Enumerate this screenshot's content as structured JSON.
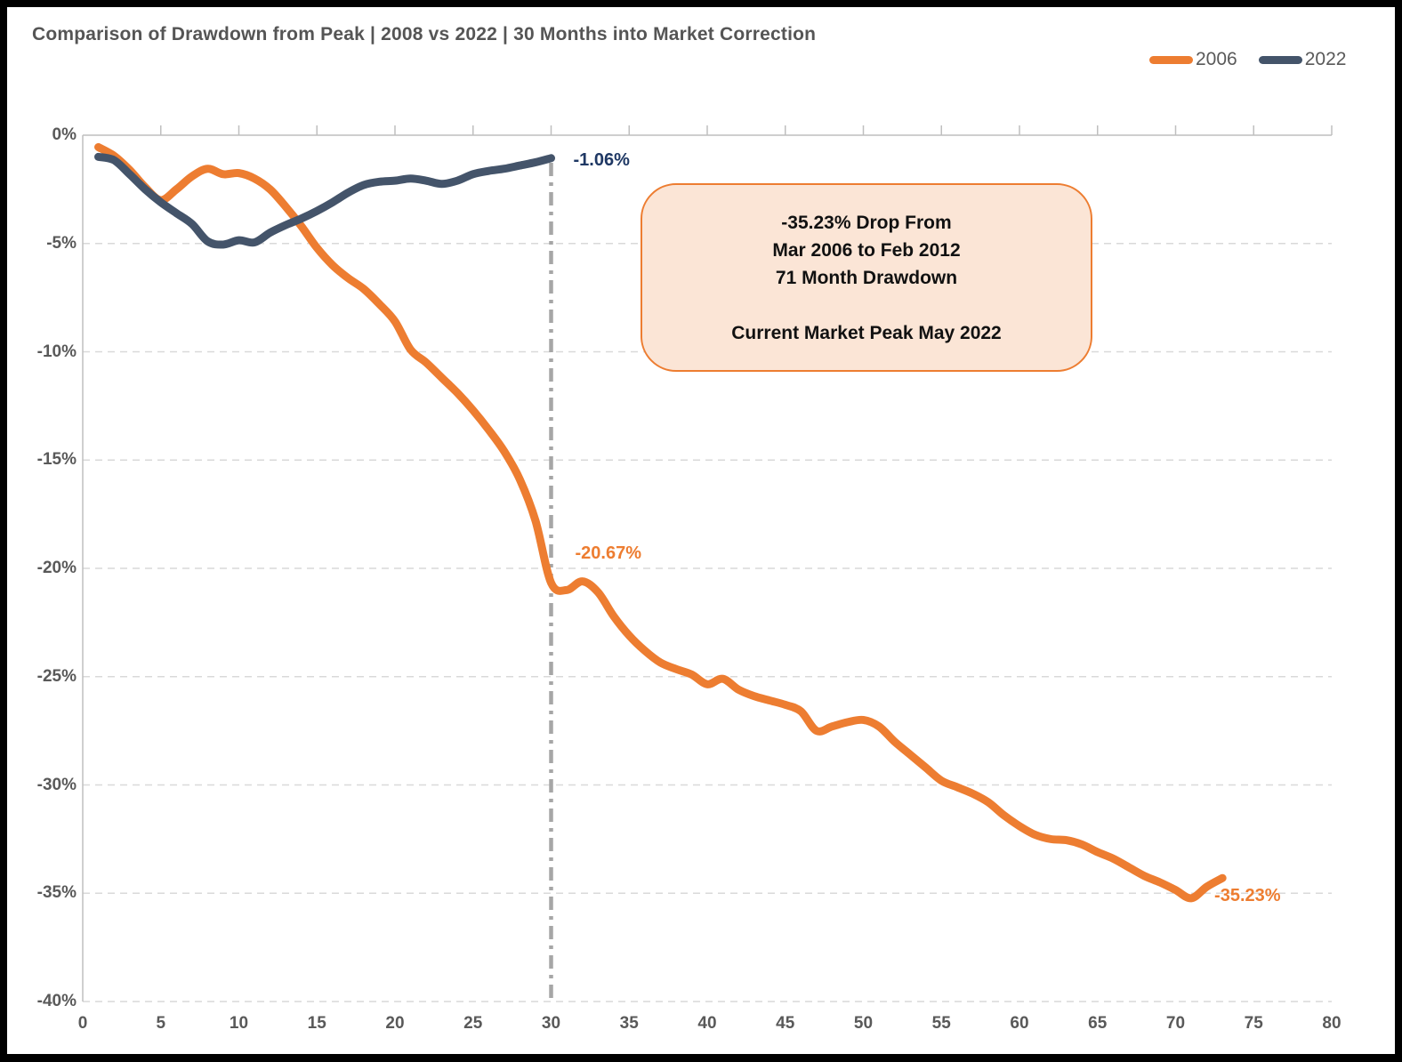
{
  "title": "Comparison of Drawdown from Peak | 2008 vs 2022 | 30 Months into Market Correction",
  "legend": [
    {
      "label": "2006",
      "color": "#ED7D31"
    },
    {
      "label": "2022",
      "color": "#44546A"
    }
  ],
  "annotation_box": {
    "lines": [
      "-35.23% Drop From",
      "Mar 2006 to Feb 2012",
      "71 Month Drawdown",
      "",
      "Current Market Peak May 2022"
    ],
    "fill_color": "#FBE5D6",
    "border_color": "#ED7D31"
  },
  "colors": {
    "series_2006": "#ED7D31",
    "series_2022": "#44546A",
    "label_2022": "#1F3864",
    "label_2006": "#ED7D31",
    "gridline": "#D9D9D9",
    "axis_line": "#BFBFBF",
    "reference_line": "#A6A6A6",
    "tick_text": "#595959",
    "title_text": "#555555"
  },
  "chart_data": {
    "type": "line",
    "title": "Comparison of Drawdown from Peak | 2008 vs 2022 | 30 Months into Market Correction",
    "xlabel": "",
    "ylabel": "",
    "xlim": [
      0,
      80
    ],
    "ylim": [
      -40,
      0
    ],
    "grid": "horizontal-dashed",
    "legend_position": "top-right",
    "x_ticks": [
      0,
      5,
      10,
      15,
      20,
      25,
      30,
      35,
      40,
      45,
      50,
      55,
      60,
      65,
      70,
      75,
      80
    ],
    "y_ticks": [
      {
        "label": "0%",
        "value": 0
      },
      {
        "label": "-5%",
        "value": -5
      },
      {
        "label": "-10%",
        "value": -10
      },
      {
        "label": "-15%",
        "value": -15
      },
      {
        "label": "-20%",
        "value": -20
      },
      {
        "label": "-25%",
        "value": -25
      },
      {
        "label": "-30%",
        "value": -30
      },
      {
        "label": "-35%",
        "value": -35
      },
      {
        "label": "-40%",
        "value": -40
      }
    ],
    "reference_line_x": 30,
    "series": [
      {
        "name": "2006",
        "color": "#ED7D31",
        "x": [
          1,
          2,
          3,
          4,
          5,
          6,
          7,
          8,
          9,
          10,
          11,
          12,
          13,
          14,
          15,
          16,
          17,
          18,
          19,
          20,
          21,
          22,
          23,
          24,
          25,
          26,
          27,
          28,
          29,
          30,
          31,
          32,
          33,
          34,
          35,
          36,
          37,
          38,
          39,
          40,
          41,
          42,
          43,
          44,
          45,
          46,
          47,
          48,
          49,
          50,
          51,
          52,
          53,
          54,
          55,
          56,
          57,
          58,
          59,
          60,
          61,
          62,
          63,
          64,
          65,
          66,
          67,
          68,
          69,
          70,
          71,
          72,
          73
        ],
        "values": [
          -0.55,
          -0.95,
          -1.6,
          -2.4,
          -3.0,
          -2.5,
          -1.9,
          -1.55,
          -1.8,
          -1.75,
          -2.0,
          -2.5,
          -3.3,
          -4.2,
          -5.2,
          -6.0,
          -6.6,
          -7.1,
          -7.8,
          -8.6,
          -9.9,
          -10.5,
          -11.2,
          -11.9,
          -12.7,
          -13.6,
          -14.6,
          -15.9,
          -17.8,
          -20.67,
          -21.0,
          -20.6,
          -21.1,
          -22.2,
          -23.1,
          -23.8,
          -24.35,
          -24.65,
          -24.9,
          -25.35,
          -25.1,
          -25.6,
          -25.9,
          -26.1,
          -26.3,
          -26.6,
          -27.5,
          -27.3,
          -27.1,
          -27.0,
          -27.3,
          -28.0,
          -28.6,
          -29.2,
          -29.8,
          -30.1,
          -30.4,
          -30.8,
          -31.4,
          -31.9,
          -32.3,
          -32.5,
          -32.55,
          -32.75,
          -33.1,
          -33.4,
          -33.8,
          -34.2,
          -34.5,
          -34.85,
          -35.23,
          -34.7,
          -34.3
        ]
      },
      {
        "name": "2022",
        "color": "#44546A",
        "x": [
          1,
          2,
          3,
          4,
          5,
          6,
          7,
          8,
          9,
          10,
          11,
          12,
          13,
          14,
          15,
          16,
          17,
          18,
          19,
          20,
          21,
          22,
          23,
          24,
          25,
          26,
          27,
          28,
          29,
          30
        ],
        "values": [
          -1.0,
          -1.15,
          -1.8,
          -2.5,
          -3.1,
          -3.6,
          -4.1,
          -4.9,
          -5.05,
          -4.85,
          -4.95,
          -4.5,
          -4.15,
          -3.85,
          -3.5,
          -3.1,
          -2.65,
          -2.3,
          -2.15,
          -2.1,
          -2.0,
          -2.1,
          -2.25,
          -2.1,
          -1.8,
          -1.65,
          -1.55,
          -1.4,
          -1.25,
          -1.06
        ]
      }
    ],
    "point_labels": [
      {
        "series": "2022",
        "x": 30,
        "label": "-1.06%"
      },
      {
        "series": "2006",
        "x": 30,
        "label": "-20.67%"
      },
      {
        "series": "2006",
        "x": 71,
        "label": "-35.23%"
      }
    ]
  }
}
